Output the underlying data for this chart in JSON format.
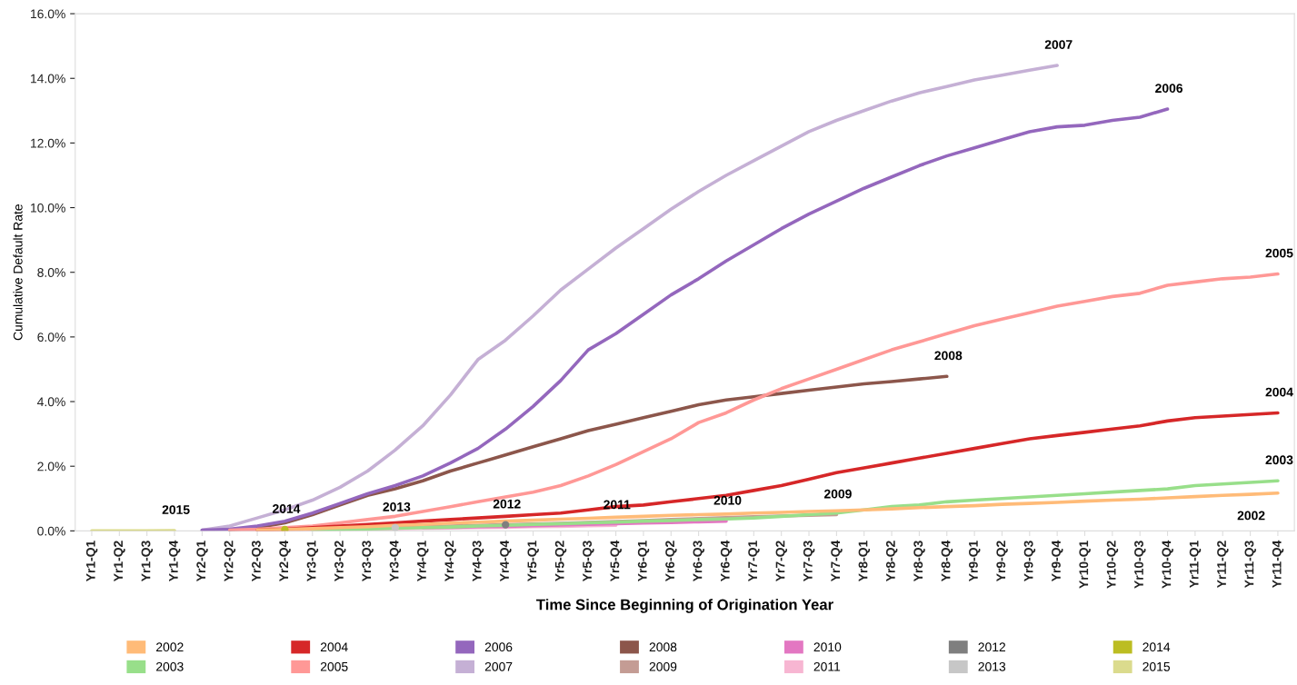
{
  "chart_data": {
    "type": "line",
    "xlabel": "Time Since Beginning of Origination Year",
    "ylabel": "Cumulative Default Rate",
    "categories": [
      "Yr1-Q1",
      "Yr1-Q2",
      "Yr1-Q3",
      "Yr1-Q4",
      "Yr2-Q1",
      "Yr2-Q2",
      "Yr2-Q3",
      "Yr2-Q4",
      "Yr3-Q1",
      "Yr3-Q2",
      "Yr3-Q3",
      "Yr3-Q4",
      "Yr4-Q1",
      "Yr4-Q2",
      "Yr4-Q3",
      "Yr4-Q4",
      "Yr5-Q1",
      "Yr5-Q2",
      "Yr5-Q3",
      "Yr5-Q4",
      "Yr6-Q1",
      "Yr6-Q2",
      "Yr6-Q3",
      "Yr6-Q4",
      "Yr7-Q1",
      "Yr7-Q2",
      "Yr7-Q3",
      "Yr7-Q4",
      "Yr8-Q1",
      "Yr8-Q2",
      "Yr8-Q3",
      "Yr8-Q4",
      "Yr9-Q1",
      "Yr9-Q2",
      "Yr9-Q3",
      "Yr9-Q4",
      "Yr10-Q1",
      "Yr10-Q2",
      "Yr10-Q3",
      "Yr10-Q4",
      "Yr11-Q1",
      "Yr11-Q2",
      "Yr11-Q3",
      "Yr11-Q4"
    ],
    "ylim": [
      0,
      16
    ],
    "yticks": [
      {
        "value": 0,
        "label": "0.0%"
      },
      {
        "value": 2,
        "label": "2.0%"
      },
      {
        "value": 4,
        "label": "4.0%"
      },
      {
        "value": 6,
        "label": "6.0%"
      },
      {
        "value": 8,
        "label": "8.0%"
      },
      {
        "value": 10,
        "label": "10.0%"
      },
      {
        "value": 12,
        "label": "12.0%"
      },
      {
        "value": 14,
        "label": "14.0%"
      },
      {
        "value": 16,
        "label": "16.0%"
      }
    ],
    "grid": false,
    "legend": "bottom",
    "marker": "none",
    "line_style": "solid",
    "series": [
      {
        "name": "2002",
        "color": "#ffbb78",
        "values": [
          null,
          null,
          null,
          null,
          null,
          null,
          0.02,
          0.04,
          0.07,
          0.1,
          0.13,
          0.17,
          0.2,
          0.24,
          0.27,
          0.3,
          0.33,
          0.36,
          0.39,
          0.42,
          0.45,
          0.48,
          0.5,
          0.52,
          0.55,
          0.57,
          0.6,
          0.62,
          0.65,
          0.68,
          0.72,
          0.75,
          0.78,
          0.82,
          0.85,
          0.88,
          0.92,
          0.95,
          0.98,
          1.02,
          1.06,
          1.1,
          1.13,
          1.17
        ]
      },
      {
        "name": "2003",
        "color": "#98df8a",
        "values": [
          null,
          null,
          null,
          null,
          null,
          null,
          null,
          null,
          0.02,
          0.04,
          0.06,
          0.08,
          0.1,
          0.12,
          0.15,
          0.17,
          0.2,
          0.22,
          0.25,
          0.27,
          0.3,
          0.32,
          0.35,
          0.37,
          0.4,
          0.45,
          0.5,
          0.55,
          0.65,
          0.75,
          0.8,
          0.9,
          0.95,
          1.0,
          1.05,
          1.1,
          1.15,
          1.2,
          1.25,
          1.3,
          1.4,
          1.45,
          1.5,
          1.55
        ]
      },
      {
        "name": "2004",
        "color": "#d62728",
        "values": [
          null,
          null,
          null,
          null,
          null,
          null,
          0.02,
          0.05,
          0.1,
          0.15,
          0.2,
          0.25,
          0.3,
          0.35,
          0.4,
          0.45,
          0.5,
          0.55,
          0.65,
          0.75,
          0.8,
          0.9,
          1.0,
          1.1,
          1.25,
          1.4,
          1.6,
          1.8,
          1.95,
          2.1,
          2.25,
          2.4,
          2.55,
          2.7,
          2.85,
          2.95,
          3.05,
          3.15,
          3.25,
          3.4,
          3.5,
          3.55,
          3.6,
          3.65
        ]
      },
      {
        "name": "2005",
        "color": "#ff9896",
        "values": [
          null,
          null,
          null,
          null,
          null,
          0.02,
          0.05,
          0.1,
          0.15,
          0.25,
          0.35,
          0.45,
          0.6,
          0.75,
          0.9,
          1.05,
          1.2,
          1.4,
          1.7,
          2.05,
          2.45,
          2.85,
          3.35,
          3.65,
          4.05,
          4.4,
          4.7,
          5.0,
          5.3,
          5.6,
          5.85,
          6.1,
          6.35,
          6.55,
          6.75,
          6.95,
          7.1,
          7.25,
          7.35,
          7.6,
          7.7,
          7.8,
          7.85,
          7.95
        ]
      },
      {
        "name": "2006",
        "color": "#9467bd",
        "values": [
          null,
          null,
          null,
          null,
          0.02,
          0.05,
          0.15,
          0.3,
          0.55,
          0.85,
          1.15,
          1.4,
          1.7,
          2.1,
          2.55,
          3.15,
          3.85,
          4.65,
          5.6,
          6.1,
          6.7,
          7.3,
          7.8,
          8.35,
          8.85,
          9.35,
          9.8,
          10.2,
          10.6,
          10.95,
          11.3,
          11.6,
          11.85,
          12.1,
          12.35,
          12.5,
          12.55,
          12.7,
          12.8,
          13.05,
          null,
          null,
          null,
          null
        ]
      },
      {
        "name": "2007",
        "color": "#c5b0d5",
        "values": [
          null,
          null,
          null,
          null,
          0.02,
          0.15,
          0.4,
          0.65,
          0.95,
          1.35,
          1.85,
          2.5,
          3.25,
          4.2,
          5.3,
          5.9,
          6.65,
          7.45,
          8.1,
          8.75,
          9.35,
          9.95,
          10.5,
          11.0,
          11.45,
          11.9,
          12.35,
          12.7,
          13.0,
          13.3,
          13.55,
          13.75,
          13.95,
          14.1,
          14.25,
          14.4,
          null,
          null,
          null,
          null,
          null,
          null,
          null,
          null
        ]
      },
      {
        "name": "2008",
        "color": "#8c564b",
        "values": [
          null,
          null,
          null,
          null,
          null,
          0.03,
          0.1,
          0.25,
          0.5,
          0.8,
          1.1,
          1.3,
          1.55,
          1.85,
          2.1,
          2.35,
          2.6,
          2.85,
          3.1,
          3.3,
          3.5,
          3.7,
          3.9,
          4.05,
          4.15,
          4.25,
          4.35,
          4.45,
          4.55,
          4.62,
          4.7,
          4.78,
          null,
          null,
          null,
          null,
          null,
          null,
          null,
          null,
          null,
          null,
          null,
          null
        ]
      },
      {
        "name": "2009",
        "color": "#c49c94",
        "values": [
          null,
          null,
          null,
          null,
          null,
          0.01,
          0.02,
          0.03,
          0.05,
          0.07,
          0.09,
          0.11,
          0.13,
          0.15,
          0.17,
          0.19,
          0.21,
          0.23,
          0.26,
          0.29,
          0.32,
          0.35,
          0.38,
          0.41,
          0.44,
          0.46,
          0.48,
          0.5,
          null,
          null,
          null,
          null,
          null,
          null,
          null,
          null,
          null,
          null,
          null,
          null,
          null,
          null,
          null,
          null
        ]
      },
      {
        "name": "2010",
        "color": "#e377c2",
        "values": [
          null,
          null,
          null,
          null,
          null,
          null,
          null,
          null,
          null,
          null,
          null,
          null,
          0.1,
          0.11,
          0.13,
          0.14,
          0.16,
          0.18,
          0.2,
          0.22,
          0.24,
          0.26,
          0.28,
          0.3,
          null,
          null,
          null,
          null,
          null,
          null,
          null,
          null,
          null,
          null,
          null,
          null,
          null,
          null,
          null,
          null,
          null,
          null,
          null,
          null
        ]
      },
      {
        "name": "2011",
        "color": "#f7b6d2",
        "values": [
          null,
          null,
          null,
          null,
          null,
          0.01,
          0.02,
          0.03,
          0.04,
          0.05,
          0.06,
          0.07,
          0.08,
          0.09,
          0.1,
          0.11,
          0.13,
          0.14,
          0.16,
          0.17,
          null,
          null,
          null,
          null,
          null,
          null,
          null,
          null,
          null,
          null,
          null,
          null,
          null,
          null,
          null,
          null,
          null,
          null,
          null,
          null,
          null,
          null,
          null,
          null
        ]
      },
      {
        "name": "2012",
        "color": "#7f7f7f",
        "values": [
          null,
          null,
          null,
          null,
          null,
          null,
          null,
          null,
          null,
          null,
          null,
          null,
          null,
          null,
          null,
          0.19,
          null,
          null,
          null,
          null,
          null,
          null,
          null,
          null,
          null,
          null,
          null,
          null,
          null,
          null,
          null,
          null,
          null,
          null,
          null,
          null,
          null,
          null,
          null,
          null,
          null,
          null,
          null,
          null
        ]
      },
      {
        "name": "2013",
        "color": "#c7c7c7",
        "values": [
          null,
          null,
          null,
          null,
          null,
          null,
          null,
          null,
          null,
          null,
          null,
          0.1,
          null,
          null,
          null,
          null,
          null,
          null,
          null,
          null,
          null,
          null,
          null,
          null,
          null,
          null,
          null,
          null,
          null,
          null,
          null,
          null,
          null,
          null,
          null,
          null,
          null,
          null,
          null,
          null,
          null,
          null,
          null,
          null
        ]
      },
      {
        "name": "2014",
        "color": "#bcbd22",
        "values": [
          null,
          null,
          null,
          null,
          null,
          null,
          null,
          0.04,
          null,
          null,
          null,
          null,
          null,
          null,
          null,
          null,
          null,
          null,
          null,
          null,
          null,
          null,
          null,
          null,
          null,
          null,
          null,
          null,
          null,
          null,
          null,
          null,
          null,
          null,
          null,
          null,
          null,
          null,
          null,
          null,
          null,
          null,
          null,
          null
        ]
      },
      {
        "name": "2015",
        "color": "#dbdb8d",
        "values": [
          0,
          0,
          0,
          0.01,
          null,
          null,
          null,
          null,
          null,
          null,
          null,
          null,
          null,
          null,
          null,
          null,
          null,
          null,
          null,
          null,
          null,
          null,
          null,
          null,
          null,
          null,
          null,
          null,
          null,
          null,
          null,
          null,
          null,
          null,
          null,
          null,
          null,
          null,
          null,
          null,
          null,
          null,
          null,
          null
        ]
      }
    ]
  }
}
